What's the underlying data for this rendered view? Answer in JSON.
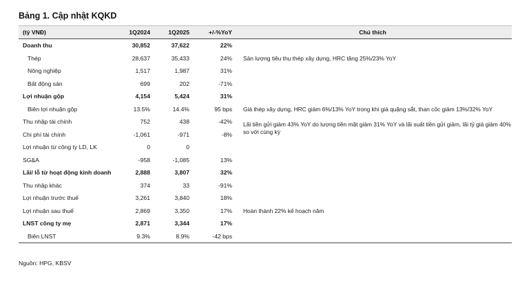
{
  "title": "Bảng 1. Cập nhật KQKD",
  "table": {
    "headers": [
      "(tỷ VNĐ)",
      "1Q2024",
      "1Q2025",
      "+/-%YoY",
      "Chú thích"
    ],
    "rows": [
      {
        "label": "Doanh thu",
        "q1_2024": "30,852",
        "q1_2025": "37,622",
        "yoy": "22%",
        "note": "",
        "bold": true,
        "sub": false
      },
      {
        "label": "Thép",
        "q1_2024": "28,637",
        "q1_2025": "35,433",
        "yoy": "24%",
        "note": "Sản lượng tiêu thụ thép xây dựng, HRC tăng 25%/23% YoY",
        "bold": false,
        "sub": true
      },
      {
        "label": "Nông nghiệp",
        "q1_2024": "1,517",
        "q1_2025": "1,987",
        "yoy": "31%",
        "note": "",
        "bold": false,
        "sub": true
      },
      {
        "label": "Bất động sản",
        "q1_2024": "699",
        "q1_2025": "202",
        "yoy": "-71%",
        "note": "",
        "bold": false,
        "sub": true
      },
      {
        "label": "Lợi nhuận gộp",
        "q1_2024": "4,154",
        "q1_2025": "5,424",
        "yoy": "31%",
        "note": "",
        "bold": true,
        "sub": false
      },
      {
        "label": "Biên lợi nhuận gộp",
        "q1_2024": "13.5%",
        "q1_2025": "14.4%",
        "yoy": "95 bps",
        "note": "Giá thép xây dựng, HRC giảm 6%/13% YoY trong khi giá quặng sắt, than cốc giảm 13%/32% YoY",
        "bold": false,
        "sub": true
      },
      {
        "label": "Thu nhập tài chính",
        "q1_2024": "752",
        "q1_2025": "438",
        "yoy": "-42%",
        "note": "Lãi tiền gửi giảm 43% YoY do lượng tiền mặt giảm 31% YoY và lãi suất tiền gửi giảm, lãi tỷ giá giảm 40% so với cùng kỳ",
        "bold": false,
        "sub": false
      },
      {
        "label": "Chi phí tài chính",
        "q1_2024": "-1,061",
        "q1_2025": "-971",
        "yoy": "-8%",
        "note": "",
        "bold": false,
        "sub": false
      },
      {
        "label": "Lợi nhuận từ công ty LD, LK",
        "q1_2024": "0",
        "q1_2025": "0",
        "yoy": "",
        "note": "",
        "bold": false,
        "sub": false
      },
      {
        "label": "SG&A",
        "q1_2024": "-958",
        "q1_2025": "-1,085",
        "yoy": "13%",
        "note": "",
        "bold": false,
        "sub": false
      },
      {
        "label": "Lãi/ lỗ từ hoạt động kinh doanh",
        "q1_2024": "2,888",
        "q1_2025": "3,807",
        "yoy": "32%",
        "note": "",
        "bold": true,
        "sub": false
      },
      {
        "label": "Thu nhập khác",
        "q1_2024": "374",
        "q1_2025": "33",
        "yoy": "-91%",
        "note": "",
        "bold": false,
        "sub": false
      },
      {
        "label": "Lợi nhuận trước thuế",
        "q1_2024": "3,261",
        "q1_2025": "3,840",
        "yoy": "18%",
        "note": "",
        "bold": false,
        "sub": false
      },
      {
        "label": "Lợi nhuận sau thuế",
        "q1_2024": "2,869",
        "q1_2025": "3,350",
        "yoy": "17%",
        "note": "Hoàn thành 22% kế hoạch năm",
        "bold": false,
        "sub": false
      },
      {
        "label": "LNST công ty mẹ",
        "q1_2024": "2,871",
        "q1_2025": "3,344",
        "yoy": "17%",
        "note": "",
        "bold": true,
        "sub": false
      },
      {
        "label": "Biên LNST",
        "q1_2024": "9.3%",
        "q1_2025": "8.9%",
        "yoy": "-42 bps",
        "note": "",
        "bold": false,
        "sub": true
      }
    ]
  },
  "source": "Nguồn: HPG, KBSV"
}
